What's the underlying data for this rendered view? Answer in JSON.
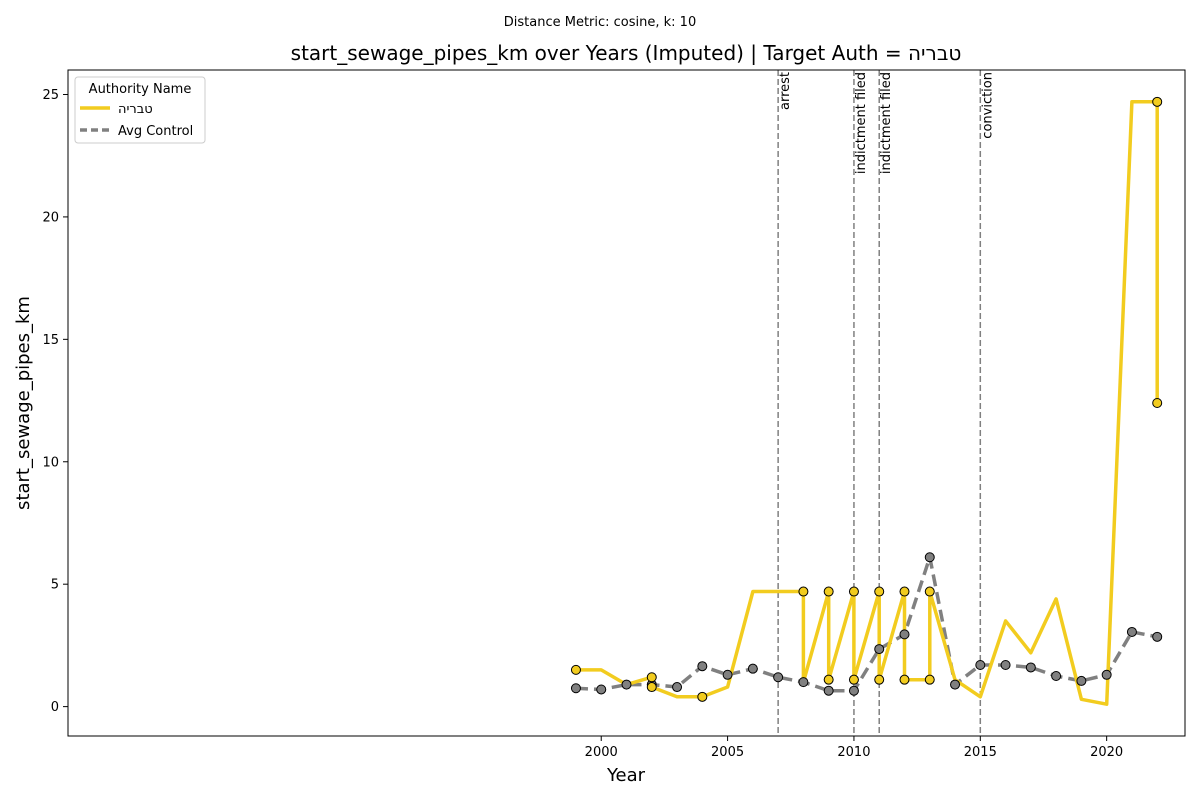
{
  "chart_data": {
    "type": "line",
    "subtitle": "Distance Metric: cosine, k: 10",
    "title": "start_sewage_pipes_km over Years (Imputed) | Target Auth = טבריה",
    "xlabel": "Year",
    "ylabel": "start_sewage_pipes_km",
    "xlim": [
      1978.9,
      2023.1
    ],
    "ylim": [
      -1.2,
      26.0
    ],
    "xticks": [
      2000,
      2005,
      2010,
      2015,
      2020
    ],
    "yticks": [
      0,
      5,
      10,
      15,
      20,
      25
    ],
    "grid": false,
    "legend": {
      "title": "Authority Name",
      "placement": "top-left",
      "entries": [
        "טבריה",
        "Avg Control"
      ]
    },
    "series": [
      {
        "name": "טבריה",
        "color": "#f2cc1f",
        "style": "solid",
        "x": [
          1999,
          1999,
          2000,
          2001,
          2002,
          2002,
          2003,
          2004,
          2004,
          2005,
          2006,
          2007,
          2008,
          2008,
          2009,
          2009,
          2010,
          2010,
          2011,
          2011,
          2012,
          2012,
          2013,
          2013,
          2014,
          2015,
          2016,
          2017,
          2018,
          2019,
          2020,
          2021,
          2022,
          2022
        ],
        "y": [
          1.5,
          1.5,
          1.5,
          0.9,
          1.2,
          0.8,
          0.4,
          0.4,
          0.4,
          0.8,
          4.7,
          4.7,
          4.7,
          1.0,
          4.7,
          1.1,
          4.7,
          1.1,
          4.7,
          1.1,
          4.7,
          1.1,
          1.1,
          4.7,
          1.1,
          0.4,
          3.5,
          2.2,
          4.4,
          0.3,
          0.1,
          24.7,
          24.7,
          12.4
        ],
        "marker_points": [
          [
            1999,
            1.5
          ],
          [
            2002,
            1.2
          ],
          [
            2002,
            0.8
          ],
          [
            2004,
            0.4
          ],
          [
            2008,
            4.7
          ],
          [
            2009,
            4.7
          ],
          [
            2009,
            1.1
          ],
          [
            2010,
            4.7
          ],
          [
            2010,
            1.1
          ],
          [
            2011,
            4.7
          ],
          [
            2011,
            1.1
          ],
          [
            2012,
            4.7
          ],
          [
            2012,
            1.1
          ],
          [
            2013,
            4.7
          ],
          [
            2013,
            1.1
          ],
          [
            2022,
            24.7
          ],
          [
            2022,
            12.4
          ]
        ]
      },
      {
        "name": "Avg Control",
        "color": "#808080",
        "style": "dashed",
        "x": [
          1999,
          2000,
          2001,
          2002,
          2003,
          2004,
          2005,
          2006,
          2007,
          2008,
          2009,
          2010,
          2011,
          2012,
          2013,
          2014,
          2015,
          2016,
          2017,
          2018,
          2019,
          2020,
          2021,
          2022
        ],
        "y": [
          0.75,
          0.7,
          0.9,
          0.9,
          0.8,
          1.65,
          1.3,
          1.55,
          1.2,
          1.0,
          0.65,
          0.65,
          2.35,
          2.95,
          6.1,
          0.9,
          1.7,
          1.7,
          1.6,
          1.25,
          1.05,
          1.3,
          3.05,
          2.85
        ],
        "marker_points": "all"
      }
    ],
    "events": [
      {
        "x": 2007,
        "label": "arrest"
      },
      {
        "x": 2010,
        "label": "indictment filed"
      },
      {
        "x": 2011,
        "label": "indictment filed"
      },
      {
        "x": 2015,
        "label": "conviction"
      }
    ]
  }
}
